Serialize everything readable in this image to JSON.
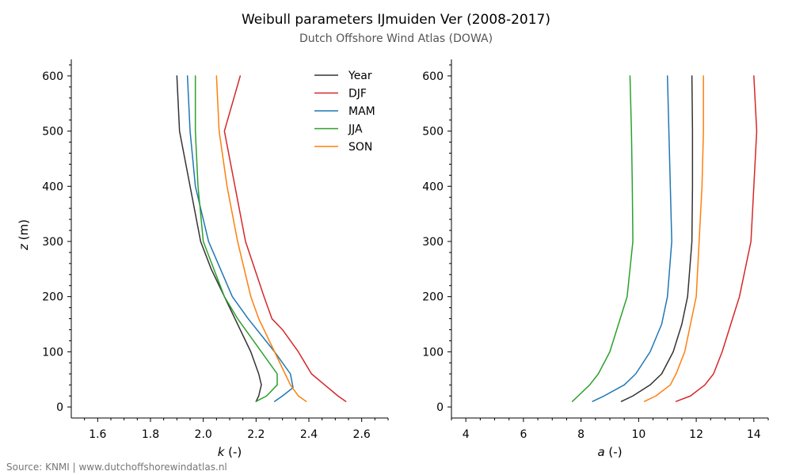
{
  "title": "Weibull parameters IJmuiden Ver (2008-2017)",
  "subtitle": "Dutch Offshore Wind Atlas (DOWA)",
  "source": "Source: KNMI | www.dutchoffshorewindatlas.nl",
  "colors": {
    "Year": "#333333",
    "DJF": "#d62728",
    "MAM": "#1f77b4",
    "JJA": "#2ca02c",
    "SON": "#ff7f0e"
  },
  "chart_data": [
    {
      "type": "line",
      "orientation": "vertical-profile",
      "xlabel": "k",
      "xlabel_unit": " (-)",
      "ylabel": "z",
      "ylabel_unit": " (m)",
      "xlim": [
        1.5,
        2.7
      ],
      "ylim": [
        -20,
        630
      ],
      "xticks": [
        "1.6",
        "1.8",
        "2.0",
        "2.2",
        "2.4",
        "2.6"
      ],
      "yticks": [
        "0",
        "100",
        "200",
        "300",
        "400",
        "500",
        "600"
      ],
      "legend": {
        "placement": "top-right",
        "entries": [
          "Year",
          "DJF",
          "MAM",
          "JJA",
          "SON"
        ]
      },
      "grid": false,
      "series": [
        {
          "name": "Year",
          "points": [
            [
              2.2,
              10
            ],
            [
              2.21,
              20
            ],
            [
              2.22,
              40
            ],
            [
              2.21,
              60
            ],
            [
              2.18,
              100
            ],
            [
              2.12,
              160
            ],
            [
              2.08,
              200
            ],
            [
              2.03,
              250
            ],
            [
              1.99,
              300
            ],
            [
              1.95,
              400
            ],
            [
              1.91,
              500
            ],
            [
              1.9,
              600
            ]
          ]
        },
        {
          "name": "DJF",
          "points": [
            [
              2.54,
              10
            ],
            [
              2.51,
              20
            ],
            [
              2.46,
              40
            ],
            [
              2.41,
              60
            ],
            [
              2.36,
              100
            ],
            [
              2.3,
              140
            ],
            [
              2.26,
              160
            ],
            [
              2.23,
              200
            ],
            [
              2.16,
              300
            ],
            [
              2.08,
              500
            ],
            [
              2.14,
              600
            ]
          ]
        },
        {
          "name": "MAM",
          "points": [
            [
              2.27,
              10
            ],
            [
              2.3,
              20
            ],
            [
              2.34,
              35
            ],
            [
              2.33,
              60
            ],
            [
              2.27,
              100
            ],
            [
              2.17,
              160
            ],
            [
              2.11,
              200
            ],
            [
              2.02,
              300
            ],
            [
              1.97,
              400
            ],
            [
              1.95,
              500
            ],
            [
              1.94,
              600
            ]
          ]
        },
        {
          "name": "JJA",
          "points": [
            [
              2.2,
              10
            ],
            [
              2.24,
              20
            ],
            [
              2.28,
              40
            ],
            [
              2.28,
              60
            ],
            [
              2.22,
              100
            ],
            [
              2.13,
              160
            ],
            [
              2.08,
              200
            ],
            [
              2.0,
              300
            ],
            [
              1.98,
              400
            ],
            [
              1.97,
              500
            ],
            [
              1.97,
              600
            ]
          ]
        },
        {
          "name": "SON",
          "points": [
            [
              2.39,
              10
            ],
            [
              2.36,
              20
            ],
            [
              2.33,
              40
            ],
            [
              2.31,
              60
            ],
            [
              2.27,
              100
            ],
            [
              2.21,
              160
            ],
            [
              2.18,
              200
            ],
            [
              2.13,
              300
            ],
            [
              2.09,
              400
            ],
            [
              2.06,
              500
            ],
            [
              2.05,
              600
            ]
          ]
        }
      ]
    },
    {
      "type": "line",
      "orientation": "vertical-profile",
      "xlabel": "a",
      "xlabel_unit": " (-)",
      "ylabel": "",
      "ylabel_unit": "",
      "xlim": [
        3.5,
        14.5
      ],
      "ylim": [
        -20,
        630
      ],
      "xticks": [
        "4",
        "6",
        "8",
        "10",
        "12",
        "14"
      ],
      "yticks": [
        "0",
        "100",
        "200",
        "300",
        "400",
        "500",
        "600"
      ],
      "grid": false,
      "series": [
        {
          "name": "Year",
          "points": [
            [
              9.4,
              10
            ],
            [
              9.8,
              20
            ],
            [
              10.4,
              40
            ],
            [
              10.8,
              60
            ],
            [
              11.2,
              100
            ],
            [
              11.5,
              150
            ],
            [
              11.7,
              200
            ],
            [
              11.85,
              300
            ],
            [
              11.87,
              400
            ],
            [
              11.87,
              500
            ],
            [
              11.85,
              600
            ]
          ]
        },
        {
          "name": "DJF",
          "points": [
            [
              11.3,
              10
            ],
            [
              11.8,
              20
            ],
            [
              12.3,
              40
            ],
            [
              12.6,
              60
            ],
            [
              12.9,
              100
            ],
            [
              13.2,
              150
            ],
            [
              13.5,
              200
            ],
            [
              13.9,
              300
            ],
            [
              14.0,
              400
            ],
            [
              14.1,
              500
            ],
            [
              14.0,
              600
            ]
          ]
        },
        {
          "name": "MAM",
          "points": [
            [
              8.4,
              10
            ],
            [
              8.8,
              20
            ],
            [
              9.5,
              40
            ],
            [
              9.9,
              60
            ],
            [
              10.4,
              100
            ],
            [
              10.8,
              150
            ],
            [
              11.0,
              200
            ],
            [
              11.15,
              300
            ],
            [
              11.1,
              400
            ],
            [
              11.05,
              500
            ],
            [
              11.0,
              600
            ]
          ]
        },
        {
          "name": "JJA",
          "points": [
            [
              7.7,
              10
            ],
            [
              7.9,
              20
            ],
            [
              8.3,
              40
            ],
            [
              8.6,
              60
            ],
            [
              9.0,
              100
            ],
            [
              9.3,
              150
            ],
            [
              9.6,
              200
            ],
            [
              9.8,
              300
            ],
            [
              9.78,
              400
            ],
            [
              9.75,
              500
            ],
            [
              9.7,
              600
            ]
          ]
        },
        {
          "name": "SON",
          "points": [
            [
              10.2,
              10
            ],
            [
              10.6,
              20
            ],
            [
              11.1,
              40
            ],
            [
              11.3,
              60
            ],
            [
              11.6,
              100
            ],
            [
              11.8,
              150
            ],
            [
              12.0,
              200
            ],
            [
              12.1,
              300
            ],
            [
              12.2,
              400
            ],
            [
              12.25,
              500
            ],
            [
              12.25,
              600
            ]
          ]
        }
      ]
    }
  ]
}
